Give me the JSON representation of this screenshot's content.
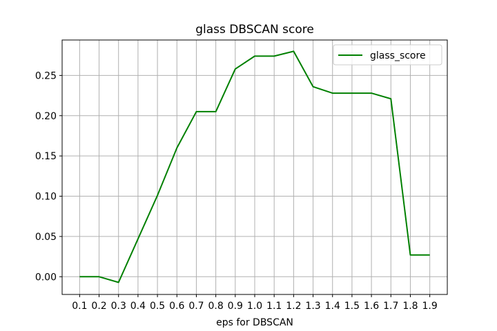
{
  "chart_data": {
    "type": "line",
    "title": "glass DBSCAN score",
    "xlabel": "eps for DBSCAN",
    "ylabel": "",
    "x": [
      0.1,
      0.2,
      0.3,
      0.4,
      0.5,
      0.6,
      0.7,
      0.8,
      0.9,
      1.0,
      1.1,
      1.2,
      1.3,
      1.4,
      1.5,
      1.6,
      1.7,
      1.8,
      1.9
    ],
    "x_tick_labels": [
      "0.1",
      "0.2",
      "0.3",
      "0.4",
      "0.5",
      "0.6",
      "0.7",
      "0.8",
      "0.9",
      "1.0",
      "1.1",
      "1.2",
      "1.3",
      "1.4",
      "1.5",
      "1.6",
      "1.7",
      "1.8",
      "1.9"
    ],
    "y_ticks": [
      0.0,
      0.05,
      0.1,
      0.15,
      0.2,
      0.25
    ],
    "y_tick_labels": [
      "0.00",
      "0.05",
      "0.10",
      "0.15",
      "0.20",
      "0.25"
    ],
    "xlim": [
      0.01,
      1.99
    ],
    "ylim": [
      -0.022,
      0.294
    ],
    "grid": true,
    "legend_position": "top-right",
    "series": [
      {
        "name": "glass_score",
        "color": "#008000",
        "values": [
          0.0,
          0.0,
          -0.007,
          0.047,
          0.101,
          0.16,
          0.205,
          0.205,
          0.258,
          0.274,
          0.274,
          0.28,
          0.236,
          0.228,
          0.228,
          0.228,
          0.221,
          0.027,
          0.027
        ]
      }
    ]
  }
}
